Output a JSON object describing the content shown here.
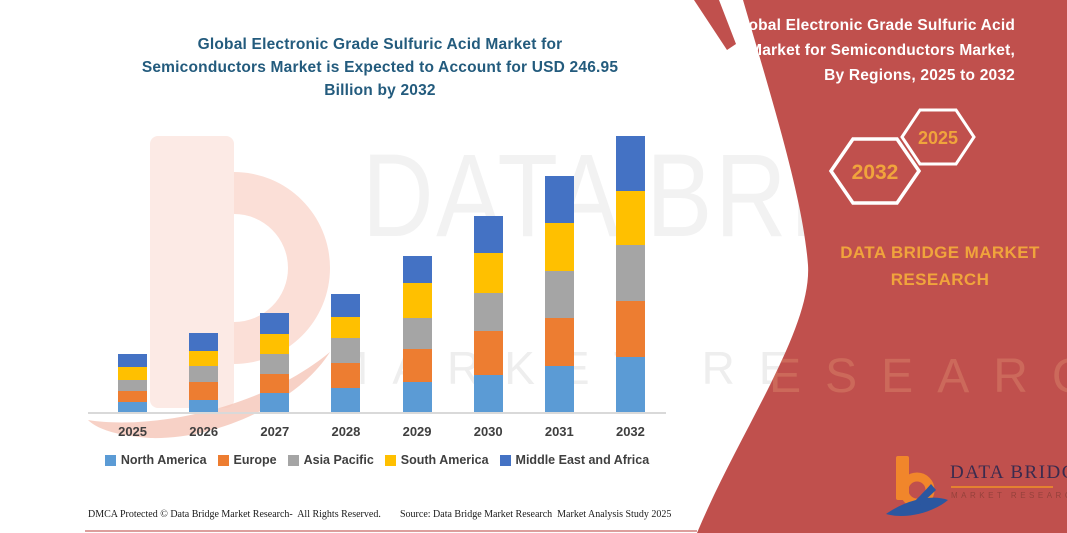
{
  "main": {
    "title": "Global Electronic Grade Sulfuric Acid Market for\nSemiconductors Market is Expected to Account for USD 246.95\nBillion by 2032",
    "title_color": "#235B7D"
  },
  "watermark": {
    "line1": "DATA BRIDGE",
    "line2": "MARKET RESEARCH"
  },
  "panel": {
    "title": "Global Electronic Grade Sulfuric Acid\nMarket for Semiconductors Market,\nBy Regions, 2025 to 2032",
    "hex_left": "2032",
    "hex_right": "2025",
    "brand_text": "DATA BRIDGE MARKET\nRESEARCH",
    "bg_color": "#C0504D",
    "accent_text_color": "#F0A43C"
  },
  "logo": {
    "wordmark": "DATA BRIDGE",
    "subtext": "MARKET RESEARCH"
  },
  "footer": {
    "dmca": "DMCA Protected © Data Bridge Market Research-  All Rights Reserved.",
    "source": "Source: Data Bridge Market Research  Market Analysis Study 2025"
  },
  "chart_data": {
    "type": "bar",
    "stacked": true,
    "unit": "USD Billion",
    "title": "",
    "xlabel": "",
    "ylabel": "",
    "ylim": [
      0,
      260
    ],
    "grid": false,
    "y_axis_shown": false,
    "legend_position": "bottom",
    "categories": [
      "2025",
      "2026",
      "2027",
      "2028",
      "2029",
      "2030",
      "2031",
      "2032"
    ],
    "series": [
      {
        "name": "North America",
        "color": "#5B9BD5",
        "values": [
          10.1,
          12.0,
          17.5,
          21.9,
          27.5,
          33.6,
          42.3,
          50.0
        ]
      },
      {
        "name": "Europe",
        "color": "#ED7D31",
        "values": [
          9.8,
          15.4,
          17.5,
          22.3,
          29.3,
          39.7,
          42.3,
          50.3
        ]
      },
      {
        "name": "Asia Pacific",
        "color": "#A5A5A5",
        "values": [
          9.5,
          14.9,
          18.0,
          22.8,
          27.9,
          33.3,
          42.2,
          49.4
        ]
      },
      {
        "name": "South America",
        "color": "#FFC000",
        "values": [
          11.3,
          12.8,
          17.5,
          18.7,
          30.8,
          36.0,
          42.3,
          48.1
        ]
      },
      {
        "name": "Middle East and Africa",
        "color": "#4472C4",
        "values": [
          11.9,
          16.2,
          18.7,
          20.4,
          24.5,
          33.0,
          42.2,
          49.15
        ]
      }
    ],
    "totals": [
      52.6,
      71.3,
      89.2,
      106.1,
      140.0,
      175.6,
      211.3,
      246.95
    ]
  }
}
